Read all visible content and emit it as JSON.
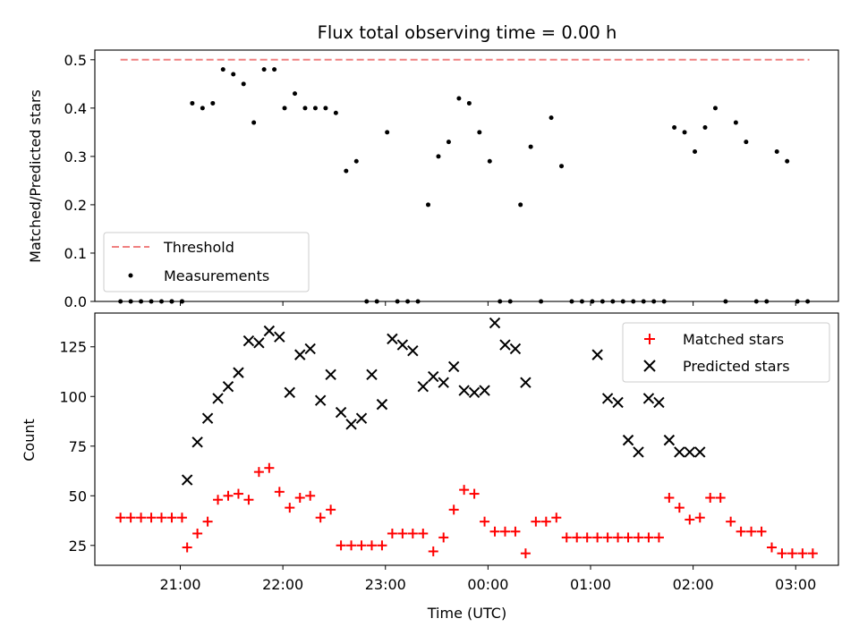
{
  "chart_data": [
    {
      "type": "scatter",
      "title": "Flux total observing time = 0.00 h",
      "xlabel": "",
      "ylabel": "Matched/Predicted stars",
      "ylim": [
        0,
        0.52
      ],
      "yticks": [
        0.0,
        0.1,
        0.2,
        0.3,
        0.4,
        0.5
      ],
      "ytick_labels": [
        "0.0",
        "0.1",
        "0.2",
        "0.3",
        "0.4",
        "0.5"
      ],
      "legend_position": "lower-left",
      "threshold": {
        "name": "Threshold",
        "value": 0.5,
        "color": "#f08080",
        "style": "dashed"
      },
      "series": [
        {
          "name": "Measurements",
          "color": "#000000",
          "marker": "dot",
          "x": [
            "20:25",
            "20:31",
            "20:37",
            "20:43",
            "20:49",
            "20:55",
            "21:01",
            "20:55",
            "21:01",
            "21:07",
            "21:13",
            "21:19",
            "21:25",
            "21:31",
            "21:37",
            "21:43",
            "21:49",
            "21:55",
            "22:01",
            "22:07",
            "22:13",
            "22:19",
            "22:25",
            "22:31",
            "22:37",
            "22:43",
            "22:49",
            "22:55",
            "23:01",
            "23:07",
            "23:13",
            "23:19",
            "23:25",
            "23:31",
            "23:37",
            "23:43",
            "23:49",
            "23:55",
            "00:01",
            "00:07",
            "00:13",
            "00:19",
            "00:25",
            "00:31",
            "00:37",
            "00:43",
            "00:49",
            "00:55",
            "01:01",
            "01:07",
            "01:13",
            "01:19",
            "01:25",
            "01:31",
            "01:37",
            "01:43",
            "01:49",
            "01:55",
            "02:01",
            "02:07",
            "02:13",
            "02:19",
            "02:25",
            "02:31",
            "02:37",
            "02:43",
            "02:49",
            "02:55",
            "03:01",
            "03:07"
          ],
          "y": [
            0,
            0,
            0,
            0,
            0,
            0,
            0,
            0,
            0,
            0.41,
            0.4,
            0.41,
            0.48,
            0.47,
            0.45,
            0.37,
            0.48,
            0.48,
            0.4,
            0.43,
            0.4,
            0.4,
            0.4,
            0.39,
            0.27,
            0.29,
            0,
            0,
            0.35,
            0,
            0,
            0,
            0.2,
            0.3,
            0.33,
            0.42,
            0.41,
            0.35,
            0.29,
            0,
            0,
            0.2,
            0.32,
            0,
            0.38,
            0.28,
            0,
            0,
            0,
            0,
            0,
            0,
            0,
            0,
            0,
            0,
            0.36,
            0.35,
            0.31,
            0.36,
            0.4,
            0,
            0.37,
            0.33,
            0,
            0,
            0.31,
            0.29,
            0,
            0
          ]
        }
      ]
    },
    {
      "type": "scatter",
      "title": "",
      "xlabel": "Time (UTC)",
      "ylabel": "Count",
      "ylim": [
        15,
        142
      ],
      "yticks": [
        25,
        50,
        75,
        100,
        125
      ],
      "ytick_labels": [
        "25",
        "50",
        "75",
        "100",
        "125"
      ],
      "xtick_labels": [
        "21:00",
        "22:00",
        "23:00",
        "00:00",
        "01:00",
        "02:00",
        "03:00"
      ],
      "legend_position": "top-right",
      "series": [
        {
          "name": "Matched stars",
          "color": "#ff0000",
          "marker": "plus",
          "x": [
            "20:25",
            "20:31",
            "20:37",
            "20:43",
            "20:49",
            "20:55",
            "21:01",
            "21:04",
            "21:10",
            "21:16",
            "21:22",
            "21:28",
            "21:34",
            "21:40",
            "21:46",
            "21:52",
            "21:58",
            "22:04",
            "22:10",
            "22:16",
            "22:22",
            "22:28",
            "22:34",
            "22:40",
            "22:46",
            "22:52",
            "22:58",
            "23:04",
            "23:10",
            "23:16",
            "23:22",
            "23:28",
            "23:34",
            "23:40",
            "23:46",
            "23:52",
            "23:58",
            "00:04",
            "00:10",
            "00:16",
            "00:22",
            "00:28",
            "00:34",
            "00:40",
            "00:46",
            "00:52",
            "00:58",
            "01:04",
            "01:10",
            "01:16",
            "01:22",
            "01:28",
            "01:34",
            "01:40",
            "01:46",
            "01:52",
            "01:58",
            "02:04",
            "02:10",
            "02:16",
            "02:22",
            "02:28",
            "02:34",
            "02:40",
            "02:46",
            "02:52",
            "02:58",
            "03:04",
            "03:10"
          ],
          "y": [
            39,
            39,
            39,
            39,
            39,
            39,
            39,
            24,
            31,
            37,
            48,
            50,
            51,
            48,
            62,
            64,
            52,
            44,
            49,
            50,
            39,
            43,
            25,
            25,
            25,
            25,
            25,
            31,
            31,
            31,
            31,
            22,
            29,
            43,
            53,
            51,
            37,
            32,
            32,
            32,
            21,
            37,
            37,
            39,
            29,
            29,
            29,
            29,
            29,
            29,
            29,
            29,
            29,
            29,
            49,
            44,
            38,
            39,
            49,
            49,
            37,
            32,
            32,
            32,
            24,
            21,
            21,
            21,
            21
          ]
        },
        {
          "name": "Predicted stars",
          "color": "#000000",
          "marker": "x",
          "x": [
            "21:04",
            "21:10",
            "21:16",
            "21:22",
            "21:28",
            "21:34",
            "21:40",
            "21:46",
            "21:52",
            "21:58",
            "22:04",
            "22:10",
            "22:16",
            "22:22",
            "22:28",
            "22:34",
            "22:40",
            "22:46",
            "22:52",
            "22:58",
            "23:04",
            "23:10",
            "23:16",
            "23:22",
            "23:28",
            "23:34",
            "23:40",
            "23:46",
            "23:52",
            "23:58",
            "00:04",
            "00:10",
            "00:16",
            "00:22",
            "01:04",
            "01:10",
            "01:16",
            "01:22",
            "01:28",
            "01:34",
            "01:40",
            "01:46",
            "01:52",
            "01:58",
            "02:04"
          ],
          "y": [
            58,
            77,
            89,
            99,
            105,
            112,
            128,
            127,
            133,
            130,
            102,
            121,
            124,
            98,
            111,
            92,
            86,
            89,
            111,
            96,
            129,
            126,
            123,
            105,
            110,
            107,
            115,
            103,
            102,
            103,
            137,
            126,
            124,
            107,
            121,
            99,
            97,
            78,
            72,
            99,
            97,
            78,
            72,
            72,
            72
          ]
        }
      ]
    }
  ]
}
